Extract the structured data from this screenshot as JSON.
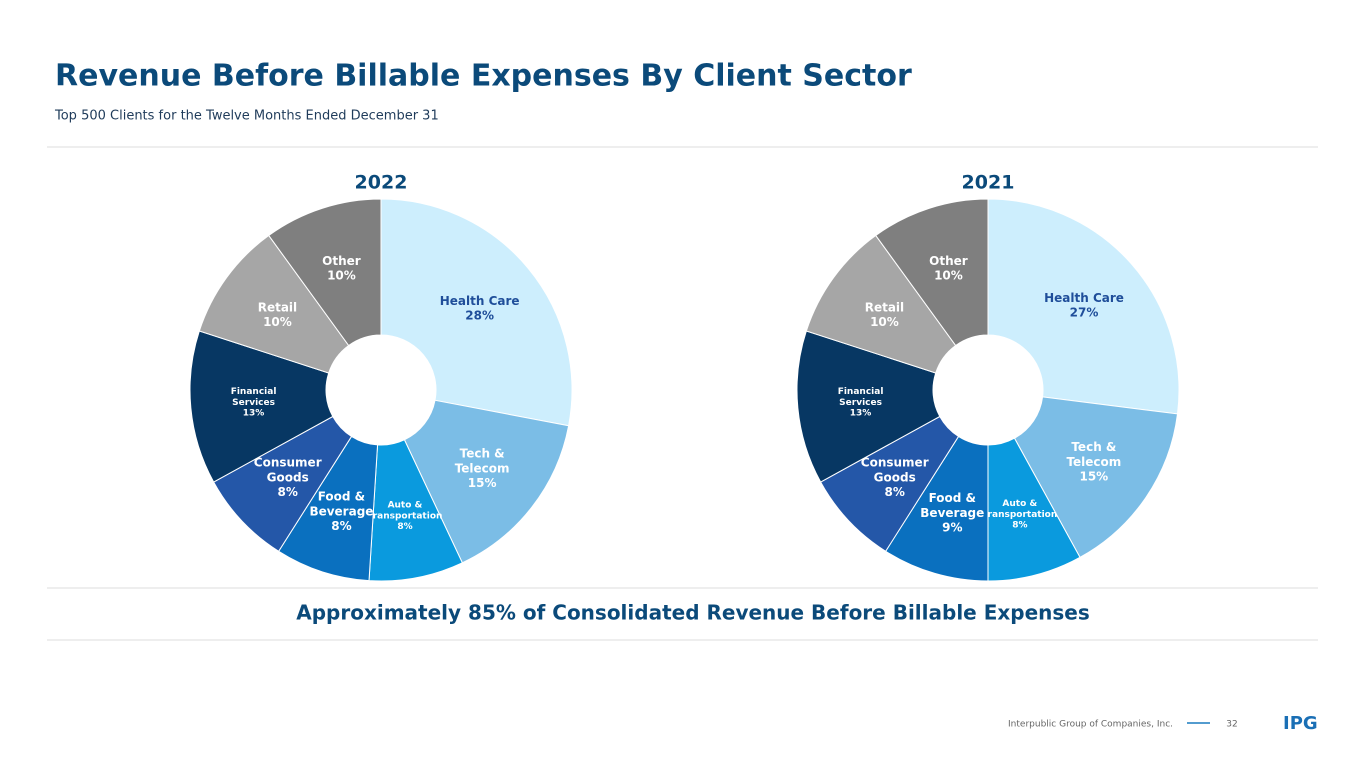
{
  "title": "Revenue Before Billable Expenses By Client Sector",
  "subtitle": "Top 500 Clients for the Twelve Months Ended December 31",
  "footnote": "Approximately 85% of Consolidated Revenue Before Billable Expenses",
  "footer": {
    "company": "Interpublic Group of Companies, Inc.",
    "page": "32",
    "logo": "IPG"
  },
  "chart_data": [
    {
      "type": "donut",
      "title": "2022",
      "categories": [
        "Health Care",
        "Tech & Telecom",
        "Auto & Transportation",
        "Food & Beverage",
        "Consumer Goods",
        "Financial Services",
        "Retail",
        "Other"
      ],
      "values": [
        28,
        15,
        8,
        8,
        8,
        13,
        10,
        10
      ],
      "value_labels": [
        "28%",
        "15%",
        "8%",
        "8%",
        "8%",
        "13%",
        "10%",
        "10%"
      ],
      "colors": [
        "#cdeefd",
        "#7bbde6",
        "#0a9ade",
        "#0a70bf",
        "#2457a8",
        "#073763",
        "#a6a6a6",
        "#7f7f7f"
      ]
    },
    {
      "type": "donut",
      "title": "2021",
      "categories": [
        "Health Care",
        "Tech & Telecom",
        "Auto & Transportation",
        "Food & Beverage",
        "Consumer Goods",
        "Financial Services",
        "Retail",
        "Other"
      ],
      "values": [
        27,
        15,
        8,
        9,
        8,
        13,
        10,
        10
      ],
      "value_labels": [
        "27%",
        "15%",
        "8%",
        "9%",
        "8%",
        "13%",
        "10%",
        "10%"
      ],
      "colors": [
        "#cdeefd",
        "#7bbde6",
        "#0a9ade",
        "#0a70bf",
        "#2457a8",
        "#073763",
        "#a6a6a6",
        "#7f7f7f"
      ]
    }
  ]
}
